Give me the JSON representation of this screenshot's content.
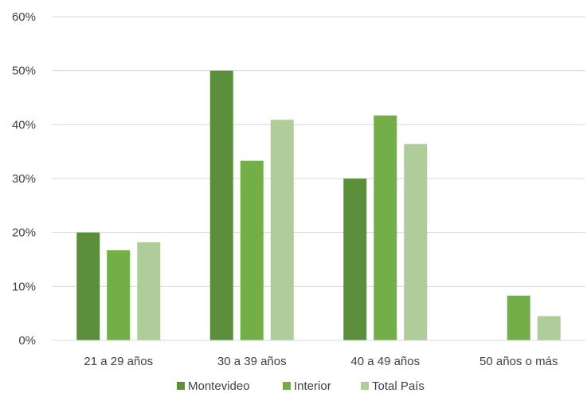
{
  "chart_data": {
    "type": "bar",
    "categories": [
      "21 a 29 años",
      "30 a 39 años",
      "40 a 49 años",
      "50 años o más"
    ],
    "series": [
      {
        "name": "Montevideo",
        "color": "#5b8f3b",
        "values": [
          20,
          50,
          30,
          0
        ]
      },
      {
        "name": "Interior",
        "color": "#73ae48",
        "values": [
          16.7,
          33.3,
          41.7,
          8.3
        ]
      },
      {
        "name": "Total País",
        "color": "#aecd9a",
        "values": [
          18.2,
          40.9,
          36.4,
          4.5
        ]
      }
    ],
    "y_ticks": [
      "0%",
      "10%",
      "20%",
      "30%",
      "40%",
      "50%",
      "60%"
    ],
    "ylim": [
      0,
      60
    ],
    "grid": true,
    "legend_position": "bottom"
  }
}
